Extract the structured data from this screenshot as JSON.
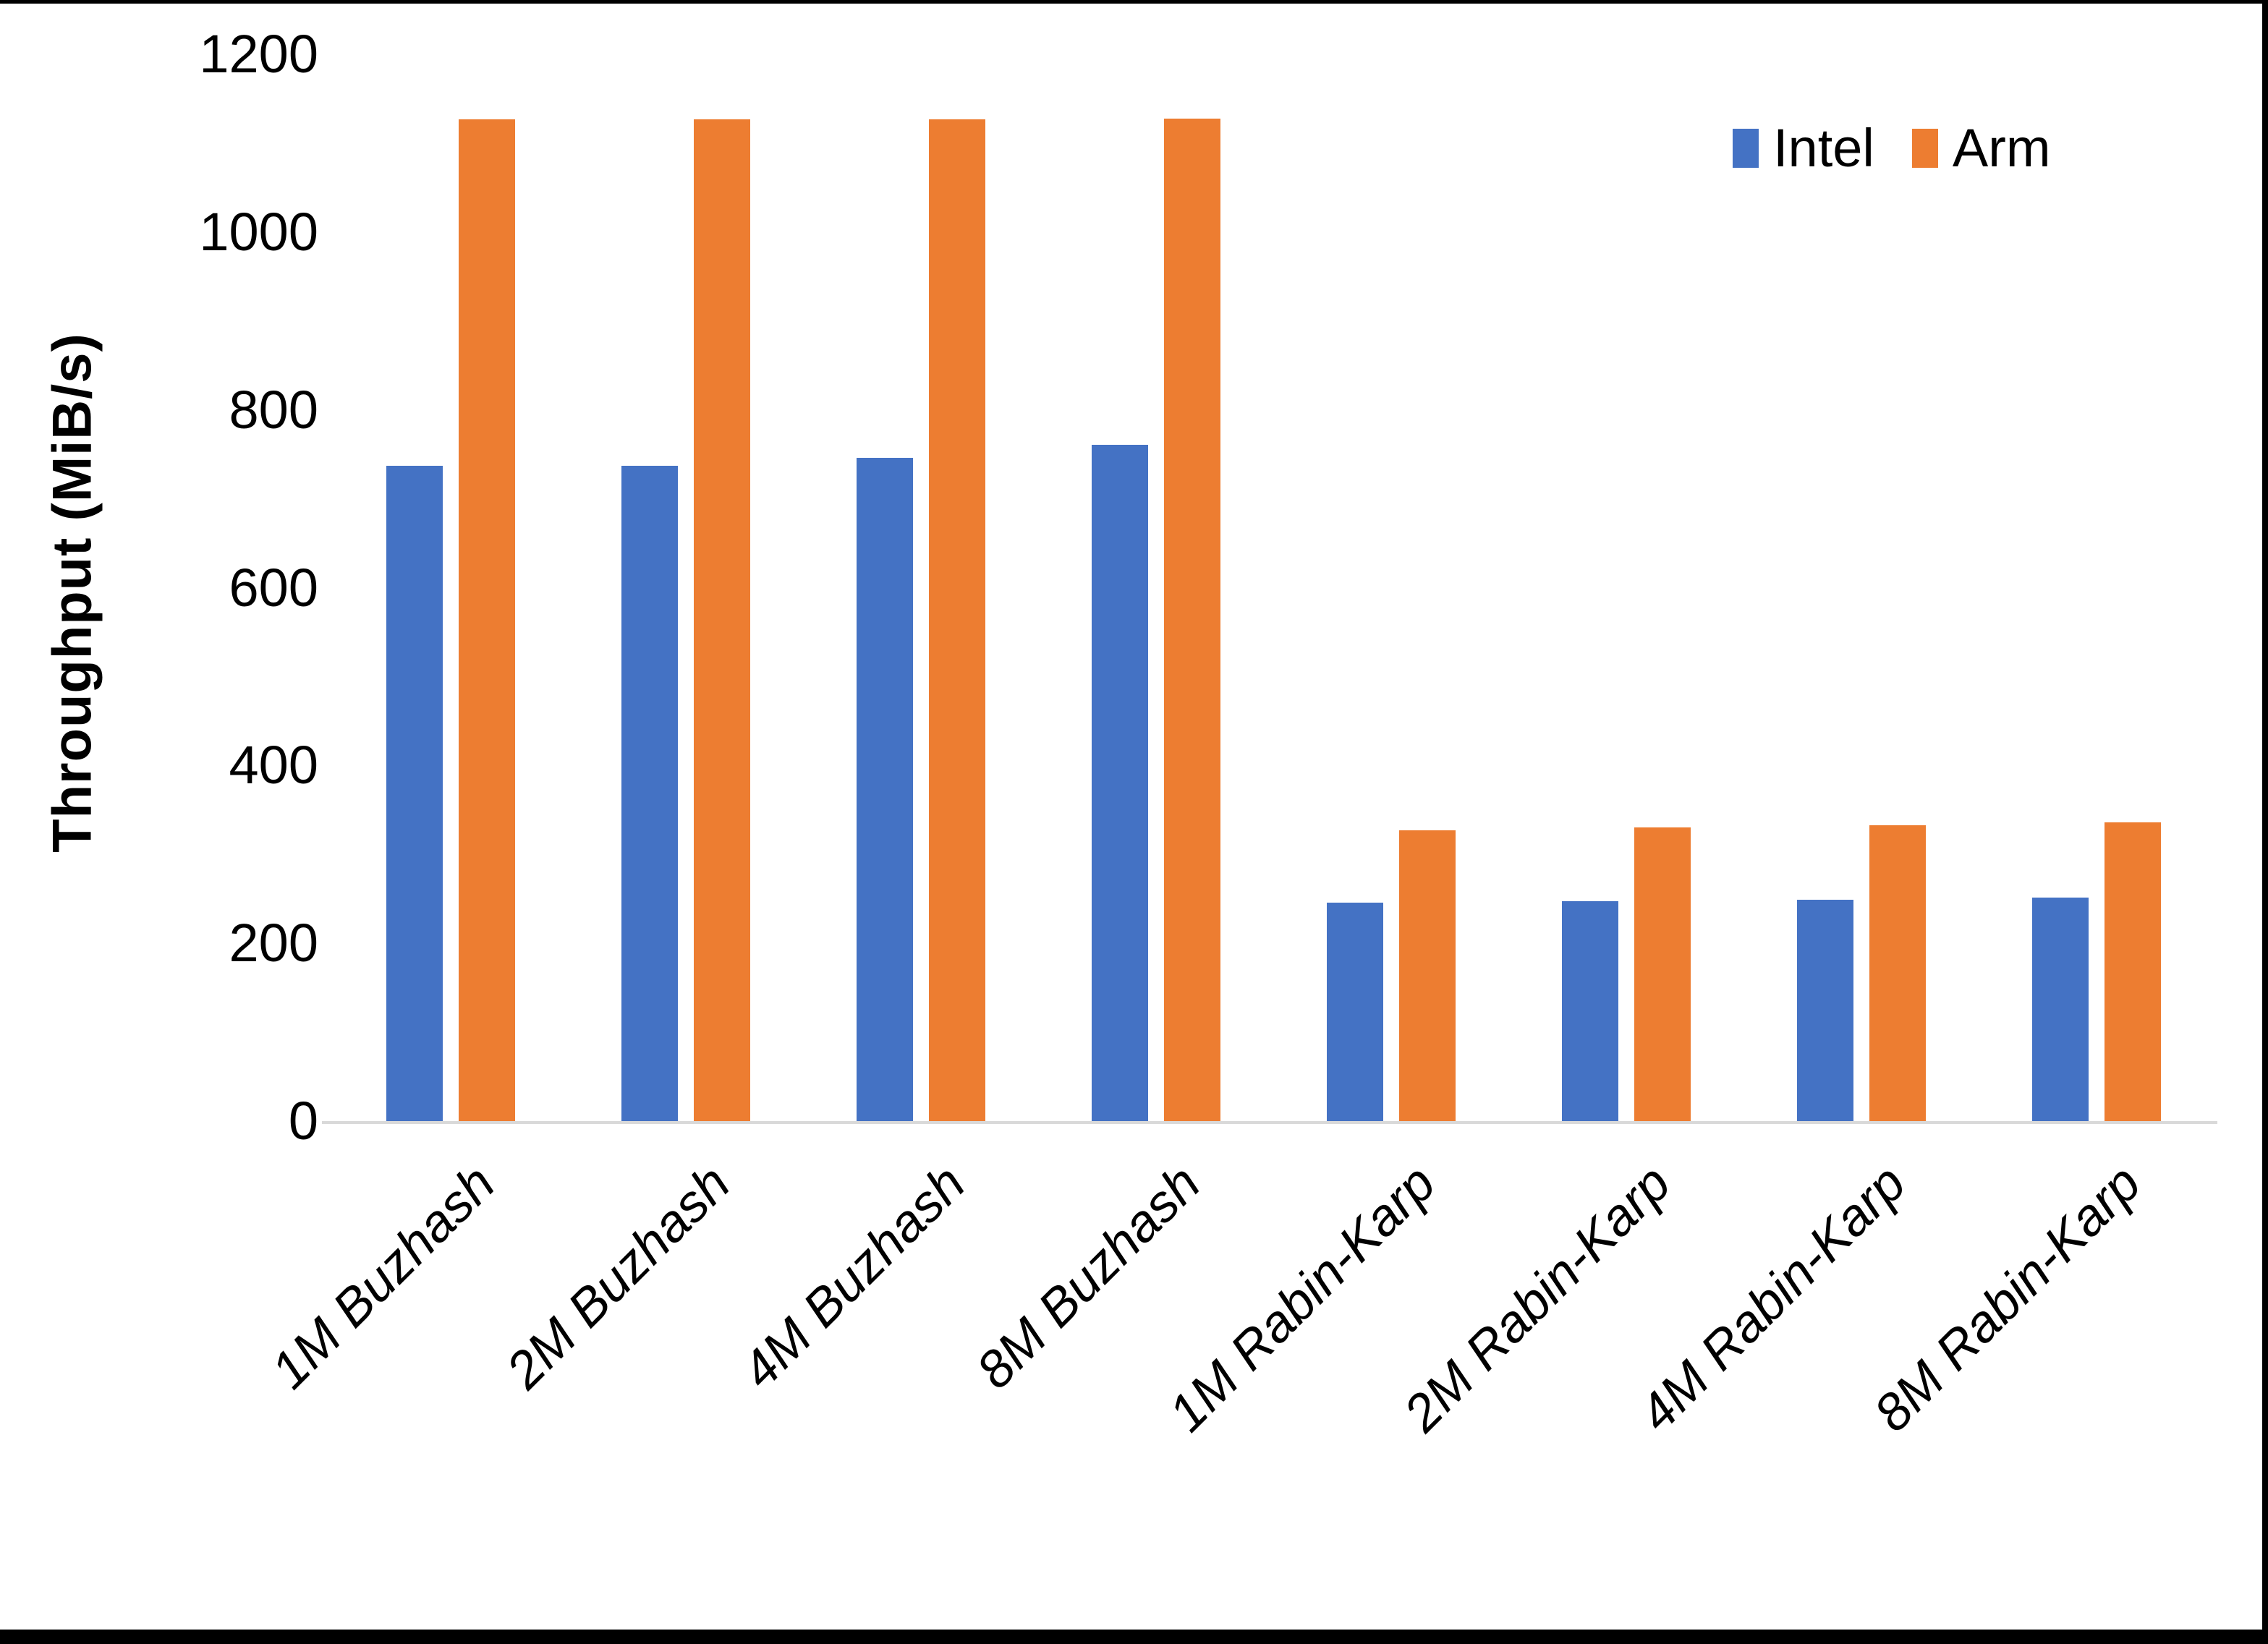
{
  "chart_data": {
    "type": "bar",
    "title": "",
    "categories": [
      "1M Buzhash",
      "2M Buzhash",
      "4M Buzhash",
      "8M Buzhash",
      "1M Rabin-Karp",
      "2M Rabin-Karp",
      "4M Rabin-Karp",
      "8M Rabin-Karp"
    ],
    "series": [
      {
        "name": "Intel",
        "color": "#4472C4",
        "values": [
          737,
          737,
          746,
          761,
          246,
          247,
          249,
          251
        ]
      },
      {
        "name": "Arm",
        "color": "#ED7D31",
        "values": [
          1127,
          1127,
          1127,
          1128,
          327,
          330,
          333,
          336
        ]
      }
    ],
    "xlabel": "",
    "ylabel": "Throughput (MiB/s)",
    "ylim": [
      0,
      1200
    ],
    "yticks": [
      0,
      200,
      400,
      600,
      800,
      1000,
      1200
    ],
    "grid": false,
    "legend_position": "top-right",
    "axis_line_color": "#D9D9D9",
    "text_color": "#000000"
  }
}
